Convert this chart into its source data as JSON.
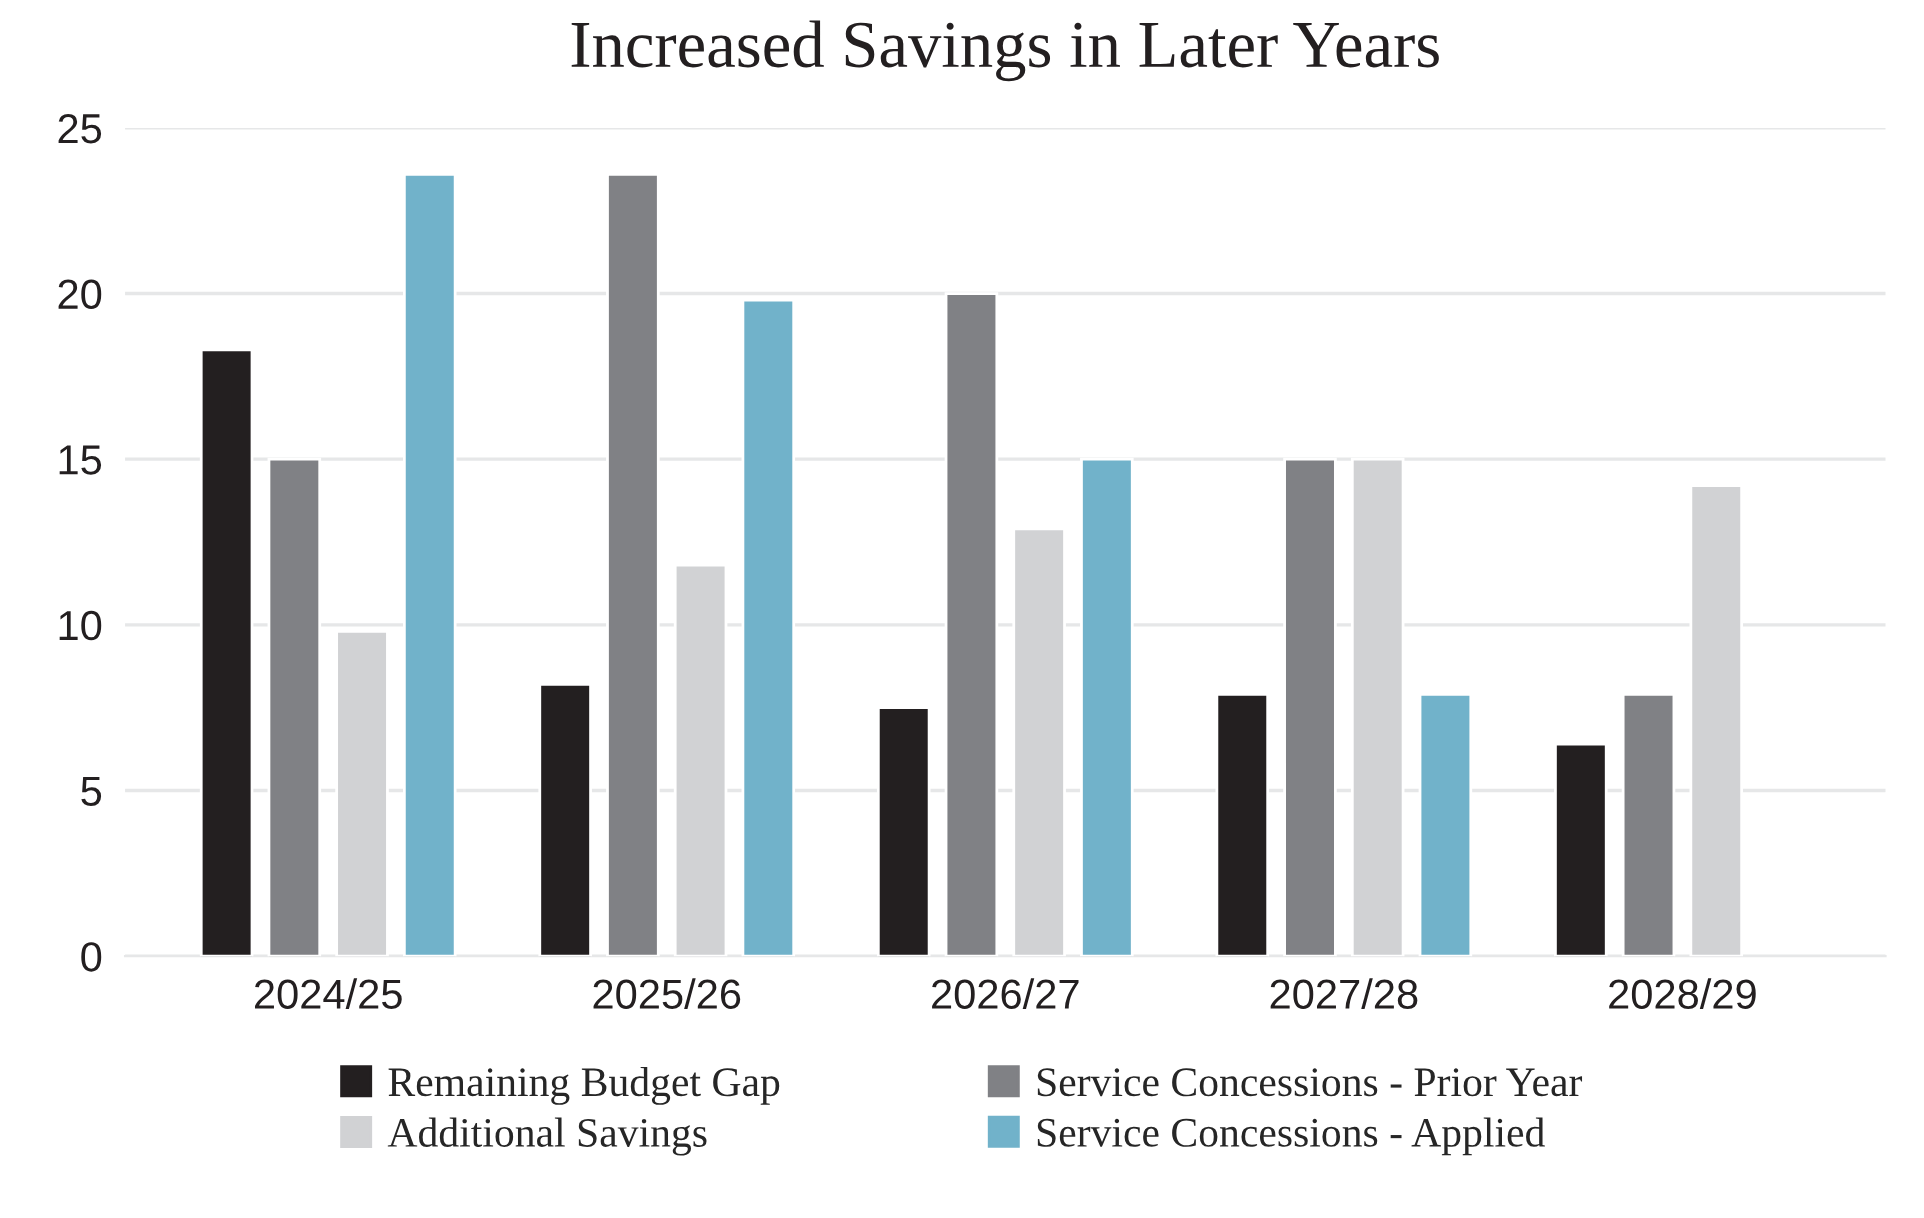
{
  "chart_data": {
    "type": "bar",
    "title": "Increased Savings in Later Years",
    "categories": [
      "2024/25",
      "2025/26",
      "2026/27",
      "2027/28",
      "2028/29"
    ],
    "series": [
      {
        "name": "Remaining Budget Gap",
        "color": "#231f20",
        "values": [
          18.3,
          8.2,
          7.5,
          7.9,
          6.4
        ]
      },
      {
        "name": "Service Concessions - Prior Year",
        "color": "#808185",
        "values": [
          15,
          23.6,
          20,
          15,
          7.9
        ]
      },
      {
        "name": "Additional Savings",
        "color": "#d1d2d4",
        "values": [
          9.8,
          11.8,
          12.9,
          15,
          14.2
        ]
      },
      {
        "name": "Service Concessions - Applied",
        "color": "#71b2ca",
        "values": [
          23.6,
          19.8,
          15,
          7.9,
          null
        ]
      }
    ],
    "ylim": [
      0,
      25
    ],
    "yticks": [
      0,
      5,
      10,
      15,
      20,
      25
    ],
    "grid": "y",
    "legend": "bottom"
  }
}
